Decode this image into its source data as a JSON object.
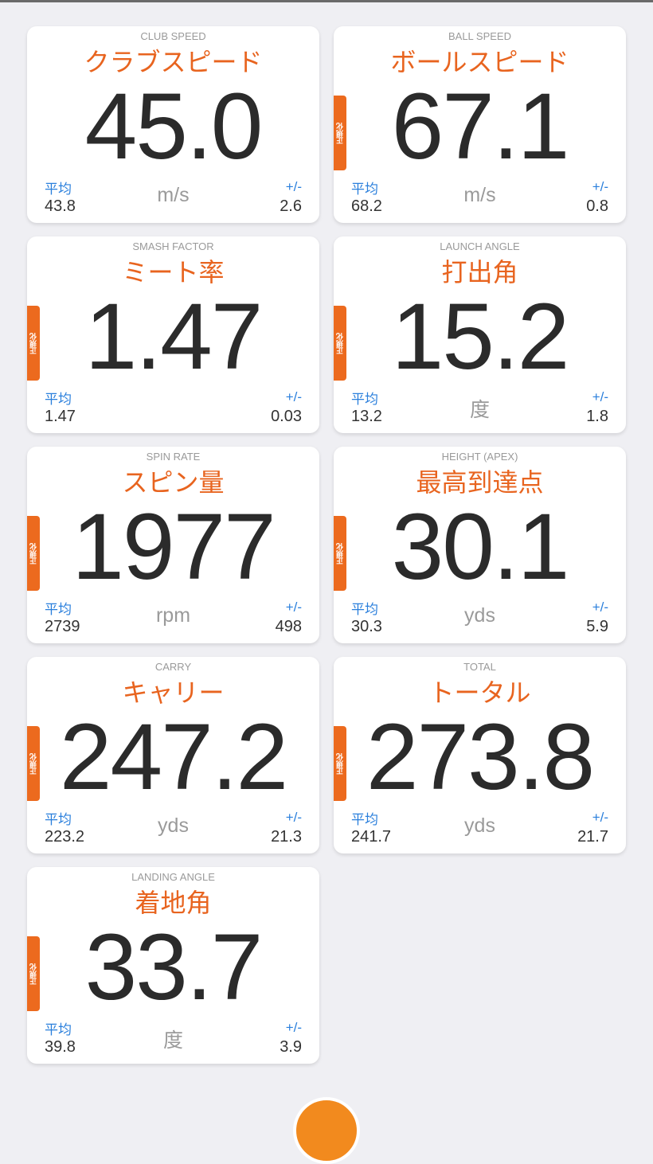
{
  "normalized_label": "正規化",
  "avg_label": "平均",
  "pm_label": "+/-",
  "colors": {
    "accent": "#e8641f",
    "tab": "#ec6a1e",
    "label_blue": "#2a7fdc"
  },
  "cards": [
    {
      "en": "CLUB SPEED",
      "jp": "クラブスピード",
      "value": "45.0",
      "unit": "m/s",
      "avg": "43.8",
      "pm": "2.6",
      "normalized": false
    },
    {
      "en": "BALL SPEED",
      "jp": "ボールスピード",
      "value": "67.1",
      "unit": "m/s",
      "avg": "68.2",
      "pm": "0.8",
      "normalized": true
    },
    {
      "en": "SMASH FACTOR",
      "jp": "ミート率",
      "value": "1.47",
      "unit": "",
      "avg": "1.47",
      "pm": "0.03",
      "normalized": true
    },
    {
      "en": "LAUNCH ANGLE",
      "jp": "打出角",
      "value": "15.2",
      "unit": "度",
      "avg": "13.2",
      "pm": "1.8",
      "normalized": true
    },
    {
      "en": "SPIN RATE",
      "jp": "スピン量",
      "value": "1977",
      "unit": "rpm",
      "avg": "2739",
      "pm": "498",
      "normalized": true
    },
    {
      "en": "HEIGHT (APEX)",
      "jp": "最高到達点",
      "value": "30.1",
      "unit": "yds",
      "avg": "30.3",
      "pm": "5.9",
      "normalized": true
    },
    {
      "en": "CARRY",
      "jp": "キャリー",
      "value": "247.2",
      "unit": "yds",
      "avg": "223.2",
      "pm": "21.3",
      "normalized": true
    },
    {
      "en": "TOTAL",
      "jp": "トータル",
      "value": "273.8",
      "unit": "yds",
      "avg": "241.7",
      "pm": "21.7",
      "normalized": true
    },
    {
      "en": "LANDING ANGLE",
      "jp": "着地角",
      "value": "33.7",
      "unit": "度",
      "avg": "39.8",
      "pm": "3.9",
      "normalized": true
    }
  ]
}
